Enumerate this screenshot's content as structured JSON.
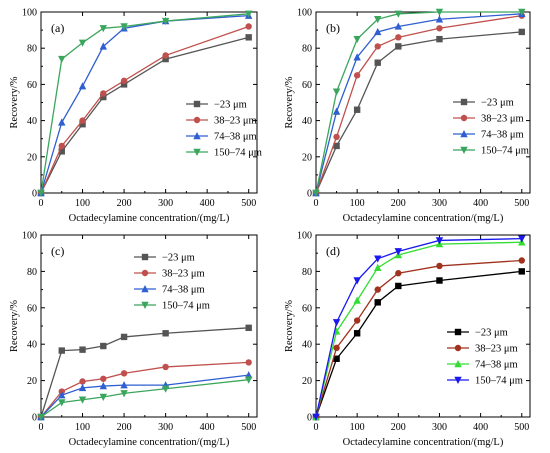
{
  "chart_data": [
    {
      "type": "line",
      "panel_label": "(a)",
      "xlabel": "Octadecylamine concentration/(mg/L)",
      "ylabel": "Recovery/%",
      "xlim": [
        0,
        520
      ],
      "ylim": [
        0,
        100
      ],
      "xticks": [
        0,
        100,
        200,
        300,
        400,
        500
      ],
      "yticks": [
        0,
        20,
        40,
        60,
        80,
        100
      ],
      "x": [
        0,
        50,
        100,
        150,
        200,
        300,
        500
      ],
      "legend_position": "right",
      "series": [
        {
          "name": "−23 μm",
          "color": "#555555",
          "marker": "square",
          "values": [
            0,
            23,
            38,
            53,
            60,
            74,
            86
          ]
        },
        {
          "name": "38–23 μm",
          "color": "#c0504d",
          "marker": "circle",
          "values": [
            0,
            26,
            40,
            55,
            62,
            76,
            92
          ]
        },
        {
          "name": "74–38 μm",
          "color": "#2f5fd0",
          "marker": "triangle-up",
          "values": [
            0,
            39,
            59,
            81,
            91,
            95,
            98
          ]
        },
        {
          "name": "150–74 μm",
          "color": "#3aa55c",
          "marker": "triangle-down",
          "values": [
            0,
            74,
            83,
            91,
            92,
            95,
            99
          ]
        }
      ]
    },
    {
      "type": "line",
      "panel_label": "(b)",
      "xlabel": "Octadecylamine concentration/(mg/L)",
      "ylabel": "Recovery/%",
      "xlim": [
        0,
        520
      ],
      "ylim": [
        0,
        100
      ],
      "xticks": [
        0,
        100,
        200,
        300,
        400,
        500
      ],
      "yticks": [
        0,
        20,
        40,
        60,
        80,
        100
      ],
      "x": [
        0,
        50,
        100,
        150,
        200,
        300,
        500
      ],
      "legend_position": "right",
      "series": [
        {
          "name": "−23 μm",
          "color": "#555555",
          "marker": "square",
          "values": [
            0,
            26,
            46,
            72,
            81,
            85,
            89
          ]
        },
        {
          "name": "38–23 μm",
          "color": "#c0504d",
          "marker": "circle",
          "values": [
            0,
            31,
            65,
            81,
            86,
            91,
            98
          ]
        },
        {
          "name": "74–38 μm",
          "color": "#2f5fd0",
          "marker": "triangle-up",
          "values": [
            0,
            45,
            75,
            89,
            92,
            96,
            99
          ]
        },
        {
          "name": "150–74 μm",
          "color": "#3aa55c",
          "marker": "triangle-down",
          "values": [
            0,
            56,
            85,
            96,
            99,
            100,
            100
          ]
        }
      ]
    },
    {
      "type": "line",
      "panel_label": "(c)",
      "xlabel": "Octadecylamine concentration/(mg/L)",
      "ylabel": "Recovery/%",
      "xlim": [
        0,
        520
      ],
      "ylim": [
        0,
        100
      ],
      "xticks": [
        0,
        100,
        200,
        300,
        400,
        500
      ],
      "yticks": [
        0,
        20,
        40,
        60,
        80,
        100
      ],
      "x": [
        0,
        50,
        100,
        150,
        200,
        300,
        500
      ],
      "legend_position": "top-right",
      "series": [
        {
          "name": "−23 μm",
          "color": "#555555",
          "marker": "square",
          "values": [
            0,
            36.5,
            37,
            39,
            44,
            46,
            49
          ]
        },
        {
          "name": "38–23 μm",
          "color": "#c0504d",
          "marker": "circle",
          "values": [
            0,
            14,
            19.5,
            21,
            24,
            27.5,
            30
          ]
        },
        {
          "name": "74–38 μm",
          "color": "#2f5fd0",
          "marker": "triangle-up",
          "values": [
            0,
            12,
            16,
            17,
            17.5,
            17.5,
            23
          ]
        },
        {
          "name": "150–74 μm",
          "color": "#3aa55c",
          "marker": "triangle-down",
          "values": [
            0,
            8,
            9.5,
            11,
            13,
            15.5,
            20.5
          ]
        }
      ]
    },
    {
      "type": "line",
      "panel_label": "(d)",
      "xlabel": "Octadecylamine concentration/(mg/L)",
      "ylabel": "Recovery/%",
      "xlim": [
        0,
        520
      ],
      "ylim": [
        0,
        100
      ],
      "xticks": [
        0,
        100,
        200,
        300,
        400,
        500
      ],
      "yticks": [
        0,
        20,
        40,
        60,
        80,
        100
      ],
      "x": [
        0,
        50,
        100,
        150,
        200,
        300,
        500
      ],
      "legend_position": "bottom-right",
      "series": [
        {
          "name": "−23 μm",
          "color": "#000000",
          "marker": "square",
          "values": [
            0,
            32,
            46,
            63,
            72,
            75,
            80
          ]
        },
        {
          "name": "38–23 μm",
          "color": "#a0321e",
          "marker": "circle",
          "values": [
            0,
            38,
            53,
            70,
            79,
            83,
            86
          ]
        },
        {
          "name": "74–38 μm",
          "color": "#33dd33",
          "marker": "triangle-up",
          "values": [
            0,
            47,
            64,
            82,
            89,
            95,
            96
          ]
        },
        {
          "name": "150–74 μm",
          "color": "#1a1aee",
          "marker": "triangle-down",
          "values": [
            0,
            52,
            75,
            87,
            91,
            97,
            98
          ]
        }
      ]
    }
  ]
}
